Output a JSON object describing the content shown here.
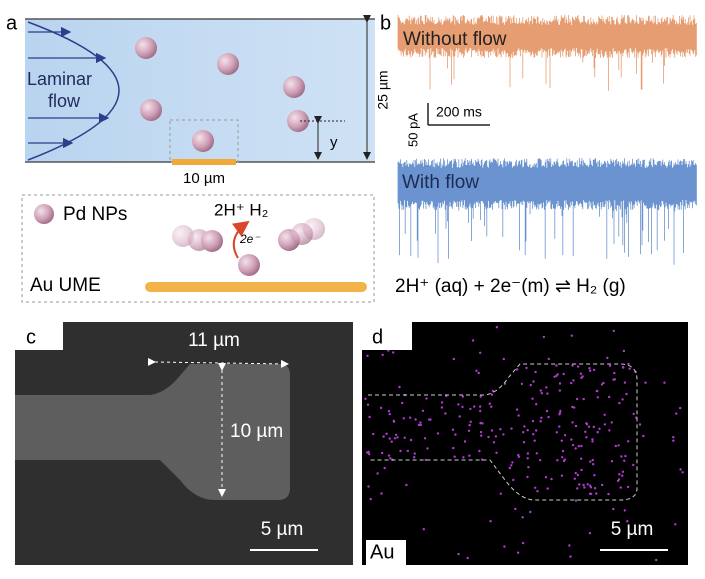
{
  "panels": {
    "a": {
      "label": "a",
      "flow_label": [
        "Laminar",
        "flow"
      ],
      "channel_height": "25 µm",
      "distance": "y",
      "electrode_width": "10 µm",
      "legend": "Pd NPs",
      "reaction": "2H⁺ H₂",
      "electrons": "2e⁻",
      "electrode": "Au UME"
    },
    "b": {
      "label": "b",
      "trace_top": "Without flow",
      "trace_bottom": "With flow",
      "scale_current": "50 pA",
      "scale_time": "200 ms",
      "equation": "2H⁺ (aq) + 2e⁻(m) ⇌ H₂ (g)"
    },
    "c": {
      "label": "c",
      "width": "11 µm",
      "height": "10 µm",
      "scale": "5 µm"
    },
    "d": {
      "label": "d",
      "element": "Au",
      "scale": "5 µm"
    }
  }
}
